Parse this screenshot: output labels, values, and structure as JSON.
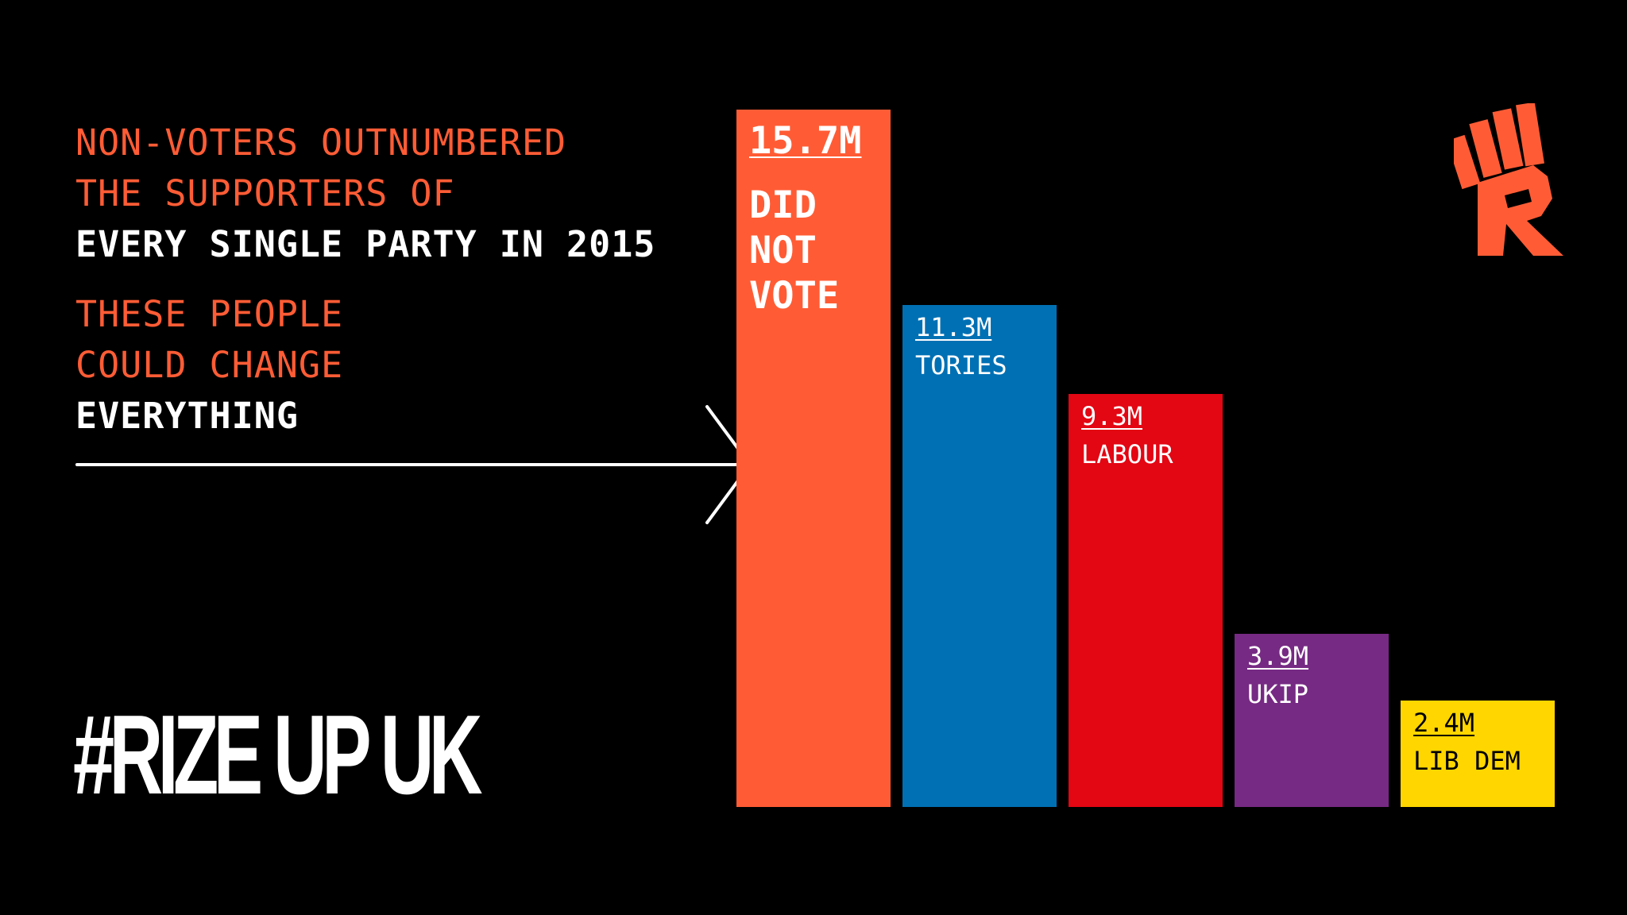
{
  "headline": {
    "line1": "NON-VOTERS OUTNUMBERED",
    "line2": "THE SUPPORTERS OF",
    "line3": "EVERY SINGLE PARTY IN 2015",
    "line4": "THESE PEOPLE",
    "line5": "COULD CHANGE",
    "line6": "EVERYTHING"
  },
  "hashtag": "#RIZE UP UK",
  "colors": {
    "background": "#000000",
    "accent": "#ff5c35",
    "text_white": "#ffffff"
  },
  "logo": {
    "icon": "raised-fist-r-icon",
    "color": "#ff5c35"
  },
  "chart_data": {
    "type": "bar",
    "categories": [
      "DID NOT VOTE",
      "TORIES",
      "LABOUR",
      "UKIP",
      "LIB DEM"
    ],
    "values": [
      15.7,
      11.3,
      9.3,
      3.9,
      2.4
    ],
    "value_labels": [
      "15.7M",
      "11.3M",
      "9.3M",
      "3.9M",
      "2.4M"
    ],
    "colors": [
      "#ff5c35",
      "#0070b4",
      "#e30613",
      "#762a83",
      "#ffd600"
    ],
    "label_colors": [
      "#ffffff",
      "#ffffff",
      "#ffffff",
      "#ffffff",
      "#000000"
    ],
    "unit": "M",
    "ylim": [
      0,
      15.7
    ],
    "grid": false
  }
}
